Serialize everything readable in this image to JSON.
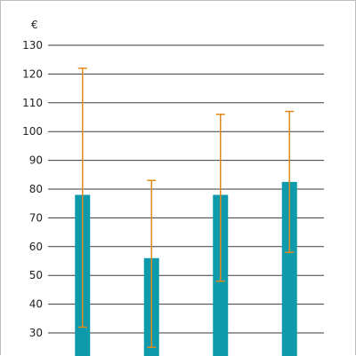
{
  "chart_data": {
    "type": "bar",
    "unit_label": "€",
    "categories": [
      "",
      "",
      "",
      ""
    ],
    "series": [
      {
        "values": [
          78,
          56,
          78,
          82.5
        ],
        "error_low": [
          32,
          25,
          48,
          58
        ],
        "error_high": [
          122,
          83,
          106,
          107
        ]
      }
    ],
    "ylim": [
      21,
      131
    ],
    "yticks": [
      30,
      40,
      50,
      60,
      70,
      80,
      90,
      100,
      110,
      120,
      130
    ],
    "grid": true,
    "legend": "none",
    "colors": {
      "bar": "#0e9aab",
      "error_bar": "#e08a1e",
      "grid": "#3a3a3a"
    }
  }
}
